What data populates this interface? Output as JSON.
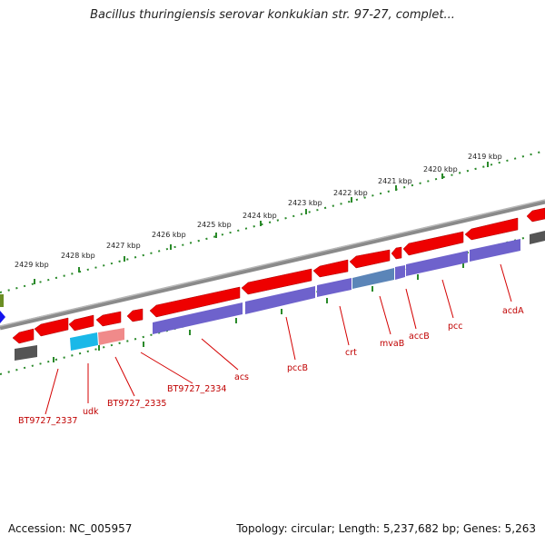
{
  "title": "Bacillus thuringiensis serovar konkukian str. 97-27, complet...",
  "footer": {
    "accession": "Accession: NC_005957",
    "topology": "Topology: circular; Length: 5,237,682 bp; Genes: 5,263"
  },
  "ruler": [
    "2429 kbp",
    "2428 kbp",
    "2427 kbp",
    "2426 kbp",
    "2425 kbp",
    "2424 kbp",
    "2423 kbp",
    "2422 kbp",
    "2421 kbp",
    "2420 kbp",
    "2419 kbp"
  ],
  "colors": {
    "backbone": "#8a8a8a",
    "cds": "#ee0000",
    "gene": "#6e62cc",
    "rna": "#1ab8e8",
    "pseudo": "#f08a8a",
    "other": "#555555",
    "dots": "#2a8a2a",
    "label": "#c00000"
  },
  "gene_labels": [
    "BT9727_2337",
    "udk",
    "BT9727_2335",
    "BT9727_2334",
    "acs",
    "pccB",
    "crt",
    "mvaB",
    "accB",
    "pcc",
    "acdA"
  ]
}
